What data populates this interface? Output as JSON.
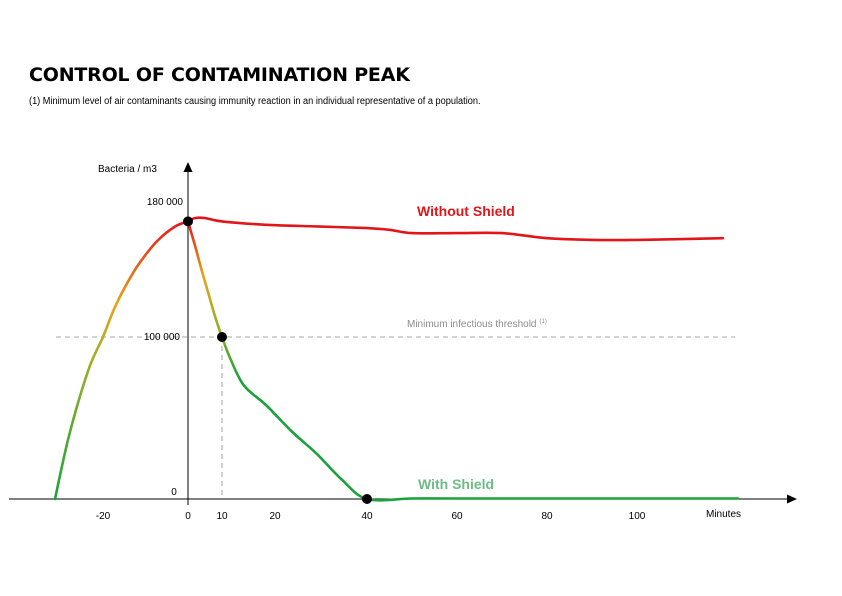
{
  "title": "CONTROL OF CONTAMINATION PEAK",
  "subtitle": "(1) Minimum level of air contaminants causing immunity reaction in an individual representative of a population.",
  "chart_data": {
    "type": "line",
    "ylabel": "Bacteria / m3",
    "xlabel": "Minutes",
    "x_ticks": [
      "-20",
      "0",
      "10",
      "20",
      "40",
      "60",
      "80",
      "100"
    ],
    "y_ticks": [
      "0",
      "100 000",
      "180 000"
    ],
    "xlim": [
      -30,
      120
    ],
    "ylim": [
      0,
      190000
    ],
    "threshold": {
      "label": "Minimum infectious threshold",
      "superscript": "(1)",
      "value": 100000
    },
    "series": [
      {
        "name": "Without Shield",
        "color": "#e1161b",
        "x": [
          0,
          2,
          5,
          10,
          20,
          30,
          40,
          45,
          50,
          60,
          70,
          80,
          90,
          100,
          117
        ],
        "y": [
          169000,
          171000,
          171000,
          169000,
          167000,
          166000,
          165000,
          164000,
          162000,
          162000,
          162000,
          159000,
          158000,
          158000,
          159000
        ]
      },
      {
        "name": "With Shield",
        "color": "#1aa23a",
        "x": [
          0,
          2,
          4,
          6,
          8,
          10,
          12,
          15,
          20,
          25,
          30,
          35,
          40,
          50,
          60,
          80,
          100,
          120
        ],
        "y": [
          169000,
          155000,
          140000,
          126000,
          112000,
          100000,
          86000,
          70000,
          58000,
          42000,
          28000,
          12000,
          0,
          300,
          300,
          300,
          300,
          300
        ]
      },
      {
        "name": "",
        "color": "#e1161b",
        "x": [
          -30,
          -27,
          -23,
          -20,
          -17,
          -13,
          -10,
          -7,
          -3,
          0
        ],
        "y": [
          0,
          40000,
          80000,
          100000,
          119000,
          138000,
          149000,
          158000,
          166000,
          169000
        ]
      }
    ],
    "markers": [
      {
        "x": 0,
        "y": 169000
      },
      {
        "x": 10,
        "y": 100000
      },
      {
        "x": 40,
        "y": 0
      }
    ],
    "colors": {
      "high": "#e1161b",
      "mid": "#e8a417",
      "low": "#1aa23a",
      "label_with_shield": "#6cbd84",
      "threshold": "#8c8c8c"
    }
  }
}
